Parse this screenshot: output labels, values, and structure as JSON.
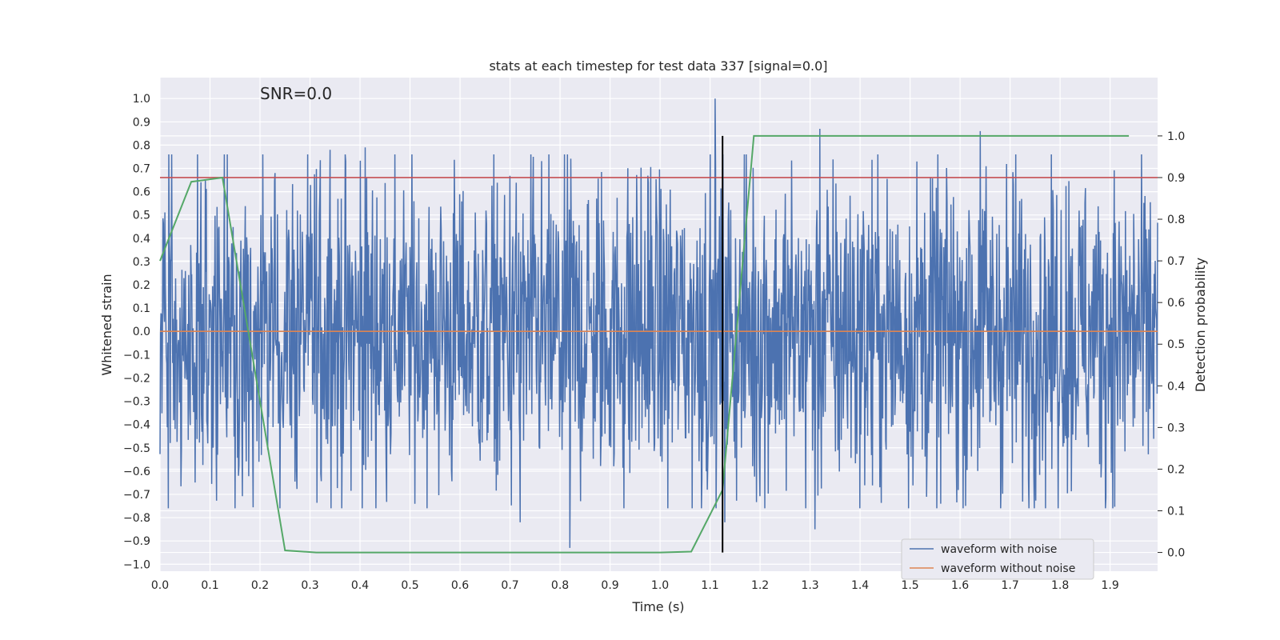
{
  "chart_data": {
    "type": "line",
    "title": "stats at each timestep for test data 337 [signal=0.0]",
    "annotation": "SNR=0.0",
    "xlabel": "Time (s)",
    "ylabel": "Whitened strain",
    "y2label": "Detection probability",
    "xlim": [
      0.0,
      1.995
    ],
    "ylim": [
      -1.03,
      1.09
    ],
    "y2lim": [
      -0.045,
      1.14
    ],
    "grid": true,
    "legend_position": "lower-right",
    "x_ticks": [
      "0.0",
      "0.1",
      "0.2",
      "0.3",
      "0.4",
      "0.5",
      "0.6",
      "0.7",
      "0.8",
      "0.9",
      "1.0",
      "1.1",
      "1.2",
      "1.3",
      "1.4",
      "1.5",
      "1.6",
      "1.7",
      "1.8",
      "1.9"
    ],
    "y_ticks": [
      "1.0",
      "0.9",
      "0.8",
      "0.7",
      "0.6",
      "0.5",
      "0.4",
      "0.3",
      "0.2",
      "0.1",
      "0.0",
      "−0.1",
      "−0.2",
      "−0.3",
      "−0.4",
      "−0.5",
      "−0.6",
      "−0.7",
      "−0.8",
      "−0.9",
      "−1.0"
    ],
    "y2_ticks": [
      "1.0",
      "0.9",
      "0.8",
      "0.7",
      "0.6",
      "0.5",
      "0.4",
      "0.3",
      "0.2",
      "0.1",
      "0.0"
    ],
    "series": [
      {
        "name": "waveform with noise",
        "color": "#4c72b0",
        "kind": "noise",
        "x_range": [
          0.0,
          1.995
        ],
        "sample_count": 2048,
        "amplitude_range": [
          -1.0,
          1.0
        ],
        "peaks": [
          [
            1.11,
            1.0
          ],
          [
            1.32,
            0.87
          ],
          [
            1.64,
            0.86
          ],
          [
            0.34,
            0.78
          ],
          [
            0.41,
            0.79
          ],
          [
            0.82,
            -0.93
          ],
          [
            1.13,
            -0.82
          ],
          [
            1.31,
            -0.85
          ],
          [
            0.72,
            -0.82
          ]
        ]
      },
      {
        "name": "waveform without noise",
        "color": "#dd8452",
        "x": [
          0.0,
          1.995
        ],
        "y": [
          0.0,
          0.0
        ]
      },
      {
        "axis": "right",
        "color": "#55a868",
        "x": [
          0.0,
          0.0625,
          0.125,
          0.25,
          0.3125,
          1.0,
          1.0625,
          1.125,
          1.1875,
          1.25,
          1.9375
        ],
        "y": [
          0.7,
          0.89,
          0.9,
          0.005,
          0.0,
          0.0,
          0.002,
          0.15,
          1.0,
          1.0,
          1.0
        ]
      }
    ],
    "threshold_line": {
      "axis": "right",
      "y": 0.9,
      "color": "#c44e52"
    },
    "marker_line": {
      "x": 1.125,
      "y2_range": [
        0.0,
        1.0
      ],
      "color": "#000000"
    },
    "legend": [
      {
        "label": "waveform with noise",
        "color": "#4c72b0"
      },
      {
        "label": "waveform without noise",
        "color": "#dd8452"
      }
    ]
  }
}
